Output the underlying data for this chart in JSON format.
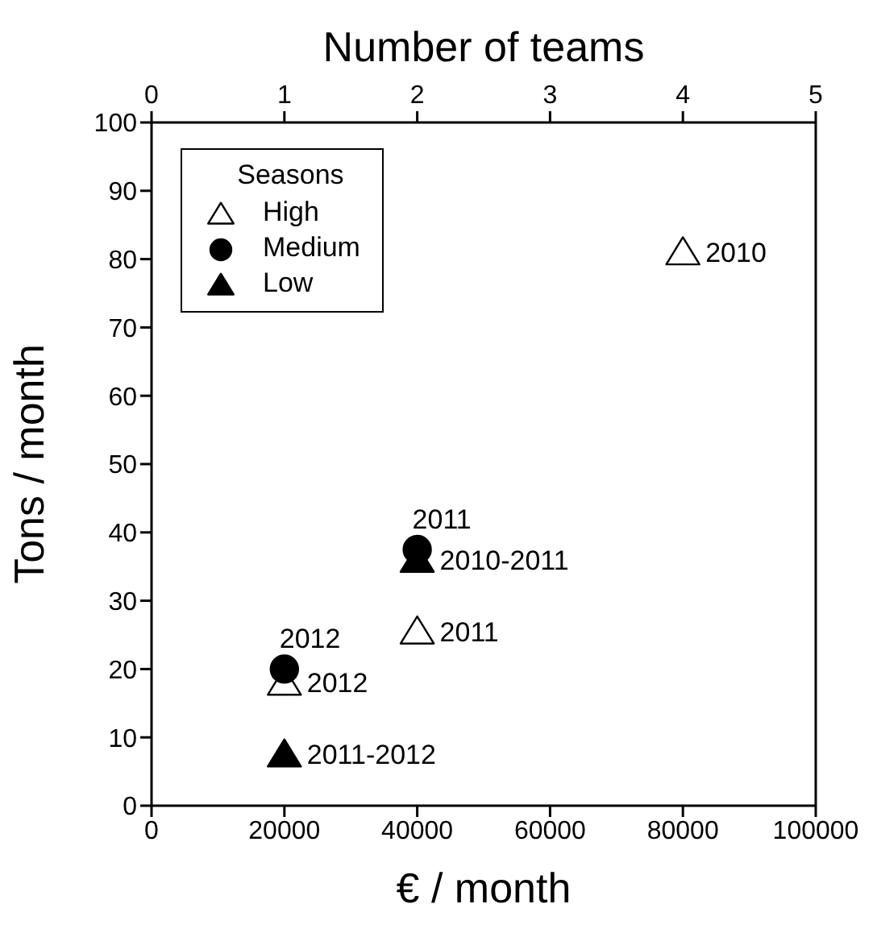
{
  "chart_data": {
    "type": "scatter",
    "xlabel": "€ / month",
    "ylabel": "Tons / month",
    "x2label": "Number of teams",
    "xlim": [
      0,
      100000
    ],
    "xticks": [
      0,
      20000,
      40000,
      60000,
      80000,
      100000
    ],
    "x2lim": [
      0,
      5
    ],
    "x2ticks": [
      0,
      1,
      2,
      3,
      4,
      5
    ],
    "ylim": [
      0,
      100
    ],
    "yticks": [
      0,
      10,
      20,
      30,
      40,
      50,
      60,
      70,
      80,
      90,
      100
    ],
    "grid": false,
    "legend": "top left",
    "legend_title": "Seasons",
    "series": [
      {
        "name": "High",
        "color": "#ffffff",
        "marker": "triangle",
        "x": [
          80000,
          40000,
          20000
        ],
        "values": [
          81,
          25.5,
          18
        ]
      },
      {
        "name": "Medium",
        "color": "#000000",
        "marker": "circle",
        "x": [
          40000,
          20000
        ],
        "values": [
          37.5,
          20
        ]
      },
      {
        "name": "Low",
        "color": "#000000",
        "marker": "triangle",
        "x": [
          40000,
          20000
        ],
        "values": [
          36,
          7.5
        ]
      }
    ],
    "annotations": [
      {
        "text": "2010",
        "x": 80000,
        "y": 81
      },
      {
        "text": "2011",
        "x": 40000,
        "y": 25.5
      },
      {
        "text": "2012",
        "x": 20000,
        "y": 18
      },
      {
        "text": "2011",
        "x": 40000,
        "y": 37.5
      },
      {
        "text": "2010-2011",
        "x": 40000,
        "y": 36
      },
      {
        "text": "2012",
        "x": 20000,
        "y": 20
      },
      {
        "text": "2011-2012",
        "x": 20000,
        "y": 7.5
      }
    ]
  }
}
